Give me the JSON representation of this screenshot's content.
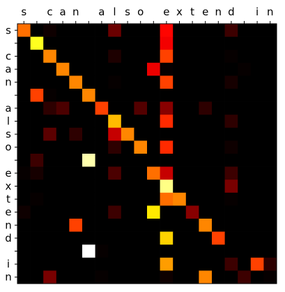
{
  "chart_data": {
    "type": "heatmap",
    "title": "",
    "xlabel": "",
    "ylabel": "",
    "colormap": "hot",
    "value_range": [
      0,
      1
    ],
    "grid": false,
    "x_tick_labels": [
      "s",
      " ",
      "c",
      "a",
      "n",
      " ",
      "a",
      "l",
      "s",
      "o",
      " ",
      "e",
      "x",
      "t",
      "e",
      "n",
      "d",
      " ",
      "i",
      "n"
    ],
    "y_tick_labels": [
      "s",
      " ",
      "c",
      "a",
      "n",
      " ",
      "a",
      "l",
      "s",
      "o",
      " ",
      "e",
      "x",
      "t",
      "e",
      "n",
      "d",
      " ",
      "i",
      "n"
    ],
    "values": [
      [
        0.52,
        0.02,
        0.06,
        0.0,
        0.0,
        0.0,
        0.0,
        0.18,
        0.0,
        0.0,
        0.0,
        0.38,
        0.0,
        0.0,
        0.0,
        0.0,
        0.12,
        0.0,
        0.0,
        0.0
      ],
      [
        0.0,
        0.78,
        0.0,
        0.0,
        0.0,
        0.02,
        0.0,
        0.0,
        0.0,
        0.0,
        0.0,
        0.36,
        0.0,
        0.0,
        0.0,
        0.0,
        0.04,
        0.0,
        0.0,
        0.0
      ],
      [
        0.0,
        0.0,
        0.55,
        0.0,
        0.0,
        0.0,
        0.0,
        0.08,
        0.0,
        0.0,
        0.0,
        0.46,
        0.0,
        0.0,
        0.0,
        0.0,
        0.05,
        0.0,
        0.0,
        0.0
      ],
      [
        0.0,
        0.0,
        0.03,
        0.55,
        0.0,
        0.0,
        0.0,
        0.0,
        0.0,
        0.0,
        0.35,
        0.05,
        0.0,
        0.0,
        0.03,
        0.0,
        0.04,
        0.05,
        0.0,
        0.04
      ],
      [
        0.0,
        0.0,
        0.0,
        0.0,
        0.55,
        0.0,
        0.0,
        0.05,
        0.0,
        0.0,
        0.0,
        0.46,
        0.0,
        0.0,
        0.0,
        0.0,
        0.07,
        0.0,
        0.0,
        0.0
      ],
      [
        0.0,
        0.46,
        0.05,
        0.0,
        0.0,
        0.55,
        0.0,
        0.04,
        0.0,
        0.0,
        0.0,
        0.03,
        0.0,
        0.0,
        0.0,
        0.0,
        0.0,
        0.0,
        0.0,
        0.0
      ],
      [
        0.0,
        0.0,
        0.1,
        0.14,
        0.0,
        0.0,
        0.46,
        0.02,
        0.0,
        0.15,
        0.0,
        0.22,
        0.0,
        0.0,
        0.1,
        0.0,
        0.0,
        0.0,
        0.0,
        0.0
      ],
      [
        0.0,
        0.0,
        0.0,
        0.0,
        0.0,
        0.0,
        0.0,
        0.62,
        0.0,
        0.0,
        0.0,
        0.43,
        0.0,
        0.0,
        0.0,
        0.0,
        0.1,
        0.0,
        0.0,
        0.0
      ],
      [
        0.04,
        0.0,
        0.16,
        0.0,
        0.1,
        0.0,
        0.0,
        0.3,
        0.55,
        0.0,
        0.0,
        0.04,
        0.0,
        0.0,
        0.0,
        0.0,
        0.0,
        0.0,
        0.0,
        0.0
      ],
      [
        0.0,
        0.0,
        0.0,
        0.0,
        0.0,
        0.0,
        0.0,
        0.1,
        0.0,
        0.55,
        0.0,
        0.43,
        0.0,
        0.0,
        0.0,
        0.0,
        0.06,
        0.0,
        0.0,
        0.0
      ],
      [
        0.0,
        0.12,
        0.0,
        0.0,
        0.0,
        0.92,
        0.03,
        0.0,
        0.0,
        0.0,
        0.0,
        0.0,
        0.0,
        0.0,
        0.0,
        0.0,
        0.0,
        0.0,
        0.0,
        0.0
      ],
      [
        0.05,
        0.07,
        0.0,
        0.0,
        0.0,
        0.0,
        0.0,
        0.14,
        0.0,
        0.0,
        0.52,
        0.3,
        0.0,
        0.0,
        0.0,
        0.0,
        0.12,
        0.0,
        0.0,
        0.0
      ],
      [
        0.0,
        0.0,
        0.04,
        0.0,
        0.0,
        0.0,
        0.0,
        0.0,
        0.0,
        0.0,
        0.0,
        0.88,
        0.0,
        0.0,
        0.0,
        0.0,
        0.2,
        0.0,
        0.0,
        0.0
      ],
      [
        0.0,
        0.05,
        0.0,
        0.0,
        0.0,
        0.0,
        0.0,
        0.0,
        0.0,
        0.0,
        0.0,
        0.52,
        0.55,
        0.0,
        0.0,
        0.0,
        0.05,
        0.0,
        0.0,
        0.0
      ],
      [
        0.06,
        0.0,
        0.0,
        0.0,
        0.0,
        0.0,
        0.0,
        0.12,
        0.0,
        0.0,
        0.68,
        0.04,
        0.0,
        0.22,
        0.0,
        0.0,
        0.0,
        0.0,
        0.0,
        0.0
      ],
      [
        0.0,
        0.0,
        0.04,
        0.0,
        0.46,
        0.0,
        0.0,
        0.03,
        0.0,
        0.0,
        0.0,
        0.0,
        0.0,
        0.0,
        0.55,
        0.0,
        0.0,
        0.04,
        0.0,
        0.0
      ],
      [
        0.0,
        0.0,
        0.04,
        0.0,
        0.0,
        0.0,
        0.0,
        0.0,
        0.0,
        0.0,
        0.0,
        0.65,
        0.0,
        0.0,
        0.0,
        0.46,
        0.0,
        0.0,
        0.0,
        0.0
      ],
      [
        0.0,
        0.0,
        0.0,
        0.0,
        0.0,
        1.0,
        0.05,
        0.0,
        0.0,
        0.0,
        0.0,
        0.0,
        0.0,
        0.0,
        0.0,
        0.0,
        0.0,
        0.0,
        0.0,
        0.0
      ],
      [
        0.0,
        0.0,
        0.0,
        0.0,
        0.0,
        0.0,
        0.0,
        0.0,
        0.0,
        0.0,
        0.0,
        0.58,
        0.0,
        0.0,
        0.0,
        0.0,
        0.12,
        0.0,
        0.46,
        0.1
      ],
      [
        0.0,
        0.0,
        0.2,
        0.0,
        0.0,
        0.0,
        0.05,
        0.0,
        0.0,
        0.0,
        0.0,
        0.06,
        0.0,
        0.0,
        0.55,
        0.0,
        0.04,
        0.12,
        0.0,
        0.05
      ]
    ]
  }
}
